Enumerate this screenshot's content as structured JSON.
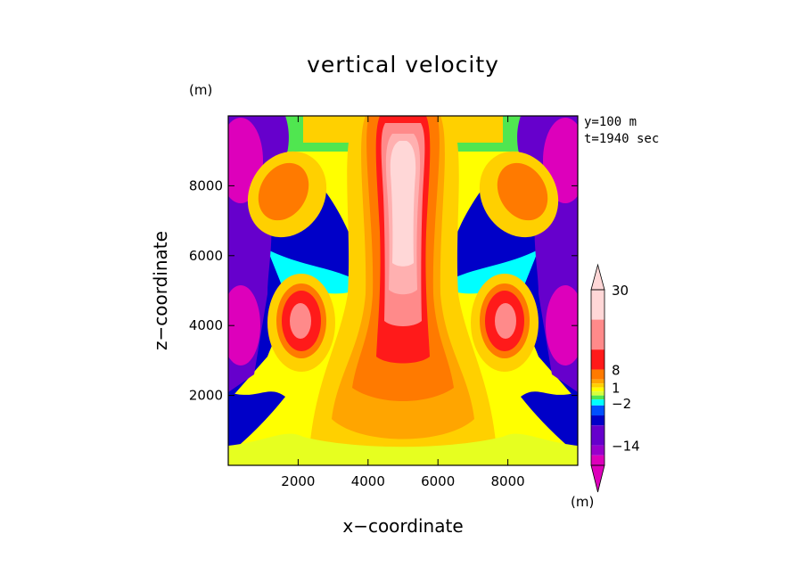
{
  "chart_data": {
    "type": "heatmap",
    "title": "vertical velocity",
    "xlabel": "x−coordinate",
    "ylabel": "z−coordinate",
    "y_unit": "(m)",
    "colorbar_unit": "(m)",
    "info": [
      "y=100 m",
      "t=1940 sec"
    ],
    "xlim": [
      0,
      10000
    ],
    "ylim": [
      0,
      10000
    ],
    "xticks": [
      2000,
      4000,
      6000,
      8000
    ],
    "yticks": [
      2000,
      4000,
      6000,
      8000
    ],
    "xtick_labels": [
      "2000",
      "4000",
      "6000",
      "8000"
    ],
    "ytick_labels": [
      "2000",
      "4000",
      "6000",
      "8000"
    ],
    "colorbar": {
      "levels_labeled": [
        "30",
        "8",
        "1",
        "−2",
        "−14"
      ],
      "colors_top_to_bottom": [
        "#ffd7d7",
        "#ff8a8a",
        "#ff1a1a",
        "#ff7a00",
        "#ffa500",
        "#ffd000",
        "#ffff00",
        "#d7ff3c",
        "#50e650",
        "#00ffff",
        "#0050ff",
        "#0000c8",
        "#6600cc",
        "#9900cc",
        "#dd00bb"
      ]
    },
    "fields": [
      {
        "desc": "central updraft core",
        "level": "30",
        "x_range": [
          4000,
          6000
        ],
        "z_range": [
          3000,
          9800
        ]
      },
      {
        "desc": "lower thermals",
        "level": "8",
        "x_centers": [
          2000,
          8000
        ],
        "z": 4100
      },
      {
        "desc": "upper thermals",
        "level": "8",
        "x_centers": [
          1200,
          8800
        ],
        "z": 7400
      },
      {
        "desc": "downdrafts at sides",
        "level": "−14",
        "x_centers": [
          200,
          9800
        ],
        "z": [
          4100,
          8500
        ]
      }
    ]
  }
}
